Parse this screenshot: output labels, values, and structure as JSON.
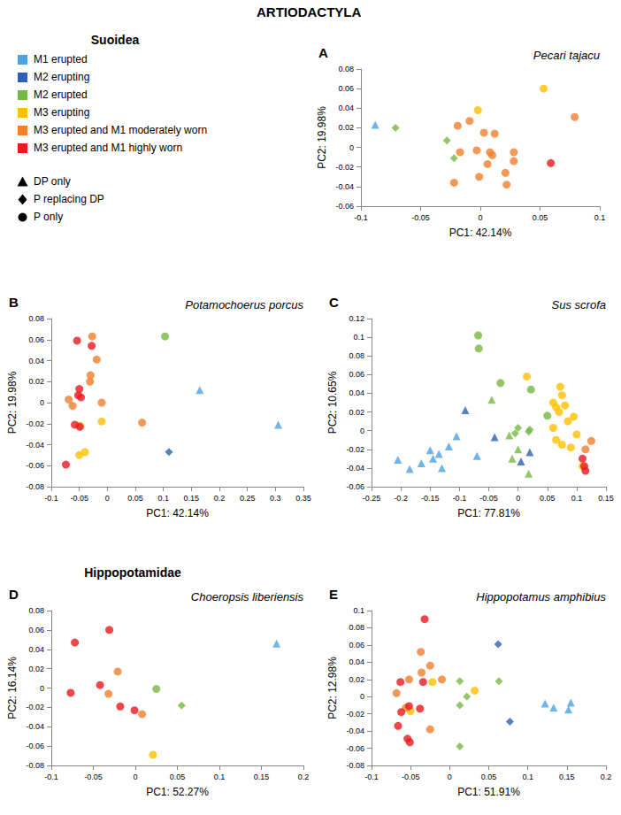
{
  "title": "ARTIODACTYLA",
  "groups": [
    "Suoidea",
    "Hippopotamidae"
  ],
  "legend": {
    "stages": [
      {
        "name": "M1 erupted",
        "color": "#4ba3e3"
      },
      {
        "name": "M2 erupting",
        "color": "#2e5fb4"
      },
      {
        "name": "M2 erupted",
        "color": "#77b843"
      },
      {
        "name": "M3 erupting",
        "color": "#ffc000"
      },
      {
        "name": "M3 erupted and M1 moderately worn",
        "color": "#f0802e"
      },
      {
        "name": "M3 erupted and M1 highly worn",
        "color": "#e8191f"
      }
    ],
    "dentition": [
      {
        "name": "DP only",
        "marker": "triangle"
      },
      {
        "name": "P replacing DP",
        "marker": "diamond"
      },
      {
        "name": "P only",
        "marker": "circle"
      }
    ]
  },
  "chart_data": [
    {
      "type": "scatter",
      "panel": "A",
      "title": "Pecari tajacu",
      "x_label": "PC1: 42.14%",
      "y_label": "PC2: 19.98%",
      "grid": false,
      "xlim": [
        -0.1,
        0.1
      ],
      "xticks": [
        -0.1,
        -0.05,
        0,
        0.05,
        0.1
      ],
      "ylim": [
        -0.06,
        0.08
      ],
      "yticks": [
        -0.06,
        -0.04,
        -0.02,
        0,
        0.02,
        0.04,
        0.06,
        0.08
      ],
      "series": [
        {
          "stage": "M1 erupted",
          "dentition": "DP only",
          "values": [
            [
              -0.088,
              0.023
            ]
          ]
        },
        {
          "stage": "M2 erupted",
          "dentition": "P replacing DP",
          "values": [
            [
              -0.071,
              0.02
            ],
            [
              -0.028,
              0.007
            ],
            [
              -0.022,
              -0.011
            ]
          ]
        },
        {
          "stage": "M3 erupting",
          "dentition": "P only",
          "values": [
            [
              0.053,
              0.06
            ],
            [
              -0.002,
              0.038
            ]
          ]
        },
        {
          "stage": "M3 erupted and M1 moderately worn",
          "dentition": "P only",
          "values": [
            [
              -0.009,
              0.027
            ],
            [
              -0.019,
              0.022
            ],
            [
              0.003,
              0.015
            ],
            [
              0.012,
              0.014
            ],
            [
              0.079,
              0.031
            ],
            [
              -0.003,
              -0.003
            ],
            [
              0.008,
              -0.005
            ],
            [
              0.01,
              -0.008
            ],
            [
              -0.017,
              -0.005
            ],
            [
              0.028,
              -0.005
            ],
            [
              0.006,
              -0.017
            ],
            [
              -0.001,
              -0.03
            ],
            [
              0.021,
              -0.026
            ],
            [
              0.028,
              -0.014
            ],
            [
              -0.022,
              -0.036
            ],
            [
              0.022,
              -0.038
            ]
          ]
        },
        {
          "stage": "M3 erupted and M1 highly worn",
          "dentition": "P only",
          "values": [
            [
              0.059,
              -0.016
            ]
          ]
        }
      ]
    },
    {
      "type": "scatter",
      "panel": "B",
      "title": "Potamochoerus porcus",
      "x_label": "PC1: 42.14%",
      "y_label": "PC2: 19.98%",
      "grid": false,
      "xlim": [
        -0.1,
        0.35
      ],
      "xticks": [
        -0.1,
        -0.05,
        0,
        0.05,
        0.1,
        0.15,
        0.2,
        0.25,
        0.3,
        0.35
      ],
      "ylim": [
        -0.08,
        0.08
      ],
      "yticks": [
        -0.08,
        -0.06,
        -0.04,
        -0.02,
        0,
        0.02,
        0.04,
        0.06,
        0.08
      ],
      "series": [
        {
          "stage": "M1 erupted",
          "dentition": "DP only",
          "values": [
            [
              0.165,
              0.012
            ],
            [
              0.305,
              -0.021
            ]
          ]
        },
        {
          "stage": "M2 erupting",
          "dentition": "P replacing DP",
          "values": [
            [
              0.11,
              -0.047
            ]
          ]
        },
        {
          "stage": "M2 erupted",
          "dentition": "P only",
          "values": [
            [
              0.103,
              0.063
            ]
          ]
        },
        {
          "stage": "M3 erupting",
          "dentition": "P only",
          "values": [
            [
              -0.05,
              -0.05
            ],
            [
              -0.04,
              -0.047
            ],
            [
              -0.049,
              -0.022
            ],
            [
              -0.01,
              -0.018
            ]
          ]
        },
        {
          "stage": "M3 erupted and M1 moderately worn",
          "dentition": "P only",
          "values": [
            [
              -0.027,
              0.063
            ],
            [
              -0.019,
              0.041
            ],
            [
              -0.069,
              0.003
            ],
            [
              -0.01,
              0.0
            ],
            [
              -0.031,
              0.02
            ],
            [
              -0.03,
              0.026
            ],
            [
              0.062,
              -0.019
            ],
            [
              -0.062,
              -0.003
            ]
          ]
        },
        {
          "stage": "M3 erupted and M1 highly worn",
          "dentition": "P only",
          "values": [
            [
              -0.054,
              0.059
            ],
            [
              -0.028,
              0.054
            ],
            [
              -0.05,
              0.013
            ],
            [
              -0.052,
              0.007
            ],
            [
              -0.047,
              0.005
            ],
            [
              -0.058,
              -0.021
            ],
            [
              -0.049,
              -0.023
            ],
            [
              -0.074,
              -0.059
            ]
          ]
        }
      ]
    },
    {
      "type": "scatter",
      "panel": "C",
      "title": "Sus scrofa",
      "x_label": "PC1: 77.81%",
      "y_label": "PC2: 10.65%",
      "grid": false,
      "xlim": [
        -0.25,
        0.15
      ],
      "xticks": [
        -0.25,
        -0.2,
        -0.15,
        -0.1,
        -0.05,
        0,
        0.05,
        0.1,
        0.15
      ],
      "ylim": [
        -0.06,
        0.12
      ],
      "yticks": [
        -0.06,
        -0.04,
        -0.02,
        0,
        0.02,
        0.04,
        0.06,
        0.08,
        0.1,
        0.12
      ],
      "series": [
        {
          "stage": "M1 erupted",
          "dentition": "DP only",
          "values": [
            [
              -0.205,
              -0.031
            ],
            [
              -0.185,
              -0.041
            ],
            [
              -0.165,
              -0.035
            ],
            [
              -0.15,
              -0.021
            ],
            [
              -0.145,
              -0.03
            ],
            [
              -0.135,
              -0.025
            ],
            [
              -0.13,
              -0.04
            ],
            [
              -0.118,
              -0.017
            ],
            [
              -0.105,
              -0.006
            ],
            [
              -0.07,
              -0.027
            ]
          ]
        },
        {
          "stage": "M2 erupting",
          "dentition": "DP only",
          "values": [
            [
              -0.09,
              0.022
            ],
            [
              -0.04,
              -0.007
            ],
            [
              0.02,
              -0.023
            ],
            [
              0.005,
              -0.033
            ]
          ]
        },
        {
          "stage": "M2 erupted",
          "dentition": "DP only",
          "values": [
            [
              -0.045,
              0.033
            ],
            [
              -0.015,
              -0.005
            ],
            [
              -0.01,
              -0.03
            ],
            [
              0.018,
              -0.046
            ],
            [
              0.0,
              -0.02
            ]
          ]
        },
        {
          "stage": "M2 erupted",
          "dentition": "P replacing DP",
          "values": [
            [
              -0.005,
              -0.003
            ],
            [
              0.0,
              0.003
            ],
            [
              0.018,
              -0.001
            ],
            [
              0.02,
              0.001
            ]
          ]
        },
        {
          "stage": "M2 erupted",
          "dentition": "P only",
          "values": [
            [
              -0.068,
              0.102
            ],
            [
              -0.067,
              0.088
            ],
            [
              -0.03,
              0.051
            ],
            [
              0.022,
              0.044
            ],
            [
              0.05,
              0.016
            ]
          ]
        },
        {
          "stage": "M3 erupting",
          "dentition": "P only",
          "values": [
            [
              0.015,
              0.058
            ],
            [
              0.06,
              0.03
            ],
            [
              0.065,
              0.025
            ],
            [
              0.072,
              0.047
            ],
            [
              0.075,
              0.038
            ],
            [
              0.07,
              0.02
            ],
            [
              0.08,
              0.027
            ],
            [
              0.085,
              0.01
            ],
            [
              0.06,
              0.003
            ],
            [
              0.065,
              -0.01
            ],
            [
              0.075,
              -0.015
            ],
            [
              0.09,
              -0.018
            ],
            [
              0.095,
              0.015
            ],
            [
              0.1,
              -0.004
            ],
            [
              0.11,
              -0.038
            ]
          ]
        },
        {
          "stage": "M3 erupted and M1 moderately worn",
          "dentition": "P only",
          "values": [
            [
              0.125,
              -0.011
            ],
            [
              0.115,
              -0.02
            ]
          ]
        },
        {
          "stage": "M3 erupted and M1 highly worn",
          "dentition": "P only",
          "values": [
            [
              0.11,
              -0.03
            ],
            [
              0.113,
              -0.038
            ],
            [
              0.115,
              -0.043
            ]
          ]
        }
      ]
    },
    {
      "type": "scatter",
      "panel": "D",
      "title": "Choeropsis liberiensis",
      "x_label": "PC1: 52.27%",
      "y_label": "PC2: 16.14%",
      "grid": false,
      "xlim": [
        -0.1,
        0.2
      ],
      "xticks": [
        -0.1,
        -0.05,
        0,
        0.05,
        0.1,
        0.15,
        0.2
      ],
      "ylim": [
        -0.08,
        0.08
      ],
      "yticks": [
        -0.08,
        -0.06,
        -0.04,
        -0.02,
        0,
        0.02,
        0.04,
        0.06,
        0.08
      ],
      "series": [
        {
          "stage": "M1 erupted",
          "dentition": "DP only",
          "values": [
            [
              0.168,
              0.046
            ]
          ]
        },
        {
          "stage": "M2 erupted",
          "dentition": "P replacing DP",
          "values": [
            [
              0.055,
              -0.018
            ]
          ]
        },
        {
          "stage": "M2 erupted",
          "dentition": "P only",
          "values": [
            [
              0.025,
              -0.001
            ]
          ]
        },
        {
          "stage": "M3 erupting",
          "dentition": "P only",
          "values": [
            [
              0.021,
              -0.069
            ]
          ]
        },
        {
          "stage": "M3 erupted and M1 moderately worn",
          "dentition": "P only",
          "values": [
            [
              -0.021,
              0.017
            ],
            [
              -0.032,
              -0.006
            ],
            [
              0.008,
              -0.027
            ]
          ]
        },
        {
          "stage": "M3 erupted and M1 highly worn",
          "dentition": "P only",
          "values": [
            [
              -0.072,
              0.047
            ],
            [
              -0.031,
              0.06
            ],
            [
              -0.042,
              0.003
            ],
            [
              -0.077,
              -0.005
            ],
            [
              -0.018,
              -0.019
            ],
            [
              -0.001,
              -0.023
            ]
          ]
        }
      ]
    },
    {
      "type": "scatter",
      "panel": "E",
      "title": "Hippopotamus amphibius",
      "x_label": "PC1: 51.91%",
      "y_label": "PC2: 12.98%",
      "grid": false,
      "xlim": [
        -0.1,
        0.2
      ],
      "xticks": [
        -0.1,
        -0.05,
        0,
        0.05,
        0.1,
        0.15,
        0.2
      ],
      "ylim": [
        -0.08,
        0.1
      ],
      "yticks": [
        -0.08,
        -0.06,
        -0.04,
        -0.02,
        0,
        0.02,
        0.04,
        0.06,
        0.08,
        0.1
      ],
      "series": [
        {
          "stage": "M1 erupted",
          "dentition": "DP only",
          "values": [
            [
              0.122,
              -0.008
            ],
            [
              0.133,
              -0.013
            ],
            [
              0.152,
              -0.015
            ],
            [
              0.155,
              -0.007
            ]
          ]
        },
        {
          "stage": "M2 erupting",
          "dentition": "P replacing DP",
          "values": [
            [
              0.062,
              0.061
            ],
            [
              0.077,
              -0.029
            ]
          ]
        },
        {
          "stage": "M2 erupted",
          "dentition": "P replacing DP",
          "values": [
            [
              0.013,
              0.018
            ],
            [
              0.063,
              0.018
            ],
            [
              0.013,
              -0.01
            ],
            [
              0.022,
              0.0
            ],
            [
              0.013,
              -0.058
            ]
          ]
        },
        {
          "stage": "M3 erupting",
          "dentition": "P only",
          "values": [
            [
              0.032,
              0.007
            ],
            [
              -0.022,
              0.017
            ],
            [
              -0.05,
              -0.017
            ]
          ]
        },
        {
          "stage": "M3 erupted and M1 moderately worn",
          "dentition": "P only",
          "values": [
            [
              -0.037,
              0.052
            ],
            [
              -0.025,
              0.036
            ],
            [
              -0.052,
              0.02
            ],
            [
              -0.01,
              0.02
            ],
            [
              -0.036,
              0.028
            ],
            [
              -0.068,
              0.004
            ],
            [
              -0.025,
              -0.038
            ],
            [
              -0.056,
              -0.013
            ]
          ]
        },
        {
          "stage": "M3 erupted and M1 highly worn",
          "dentition": "P only",
          "values": [
            [
              -0.032,
              0.09
            ],
            [
              -0.063,
              0.017
            ],
            [
              -0.034,
              0.017
            ],
            [
              -0.052,
              -0.011
            ],
            [
              -0.038,
              -0.014
            ],
            [
              -0.066,
              -0.034
            ],
            [
              -0.054,
              -0.049
            ],
            [
              -0.051,
              -0.053
            ],
            [
              -0.062,
              -0.018
            ]
          ]
        }
      ]
    }
  ]
}
